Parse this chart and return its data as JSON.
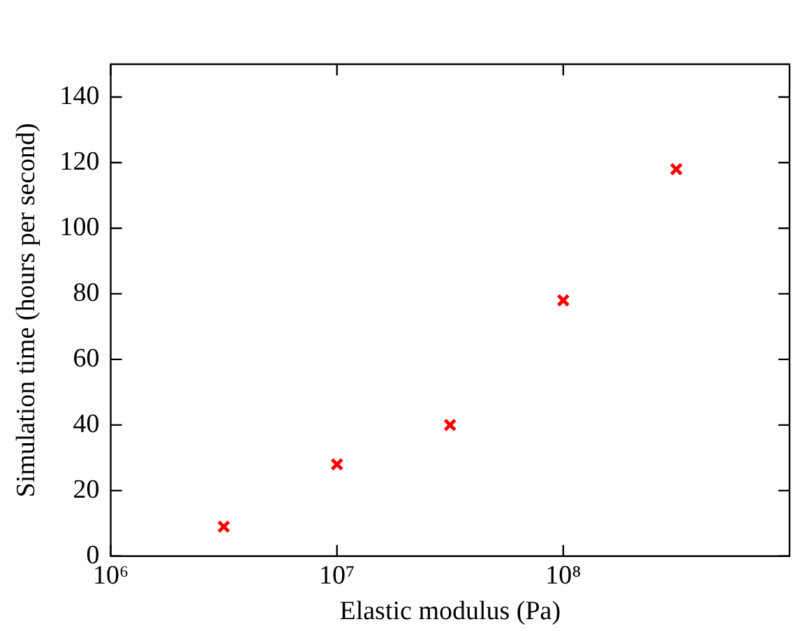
{
  "chart_data": {
    "type": "scatter",
    "xlabel": "Elastic modulus (Pa)",
    "ylabel": "Simulation time (hours per second)",
    "x": [
      3160000,
      10000000,
      31600000,
      100000000,
      316000000
    ],
    "series": [
      {
        "color": "#ff0000",
        "values": [
          9,
          28,
          40,
          78,
          118
        ]
      }
    ],
    "log": "x",
    "xlim": [
      1000000,
      1000000000
    ],
    "xticks": [
      {
        "value": 1000000,
        "label": "10⁶"
      },
      {
        "value": 10000000,
        "label": "10⁷"
      },
      {
        "value": 100000000,
        "label": "10⁸"
      }
    ],
    "ylim": [
      0,
      150
    ],
    "yticks": [
      0,
      20,
      40,
      60,
      80,
      100,
      120,
      140
    ],
    "grid": false,
    "legend": false,
    "marker": "cross"
  }
}
